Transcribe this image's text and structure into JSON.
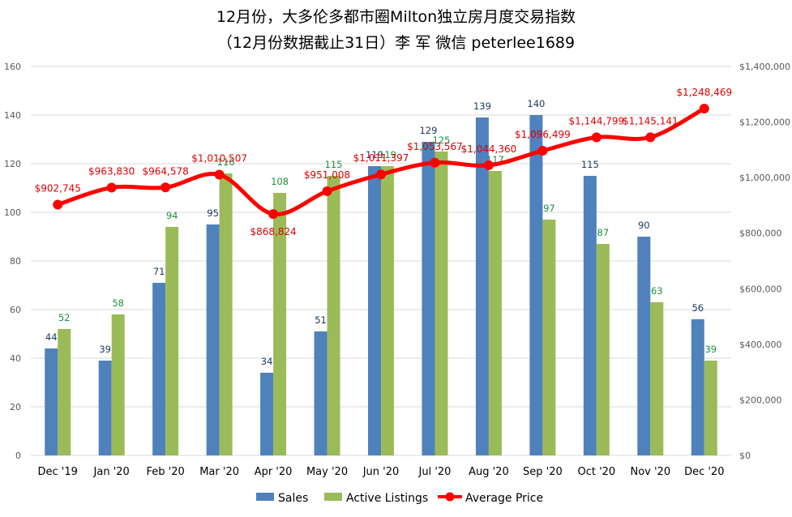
{
  "title": "12月份，大多伦多都市圈Milton独立房月度交易指数",
  "subtitle": "（12月份数据截止31日）李 军  微信  peterlee1689",
  "chart_data": {
    "type": "bar",
    "categories": [
      "Dec '19",
      "Jan '20",
      "Feb '20",
      "Mar '20",
      "Apr '20",
      "May '20",
      "Jun '20",
      "Jul '20",
      "Aug '20",
      "Sep '20",
      "Oct '20",
      "Nov '20",
      "Dec '20"
    ],
    "series": [
      {
        "name": "Sales",
        "type": "bar",
        "axis": "left",
        "color": "#4f81bd",
        "label_color": "#1f3864",
        "values": [
          44,
          39,
          71,
          95,
          34,
          51,
          119,
          129,
          139,
          140,
          115,
          90,
          56
        ]
      },
      {
        "name": "Active Listings",
        "type": "bar",
        "axis": "left",
        "color": "#9bbb59",
        "label_color": "#1e8f3c",
        "values": [
          52,
          58,
          94,
          116,
          108,
          115,
          119,
          125,
          117,
          97,
          87,
          63,
          39
        ]
      },
      {
        "name": "Average Price",
        "type": "line",
        "axis": "right",
        "color": "#ff0000",
        "label_color": "#e00000",
        "values": [
          902745,
          963830,
          964578,
          1010507,
          868824,
          951008,
          1011397,
          1053567,
          1044360,
          1096499,
          1144799,
          1145141,
          1248469
        ],
        "labels": [
          "$902,745",
          "$963,830",
          "$964,578",
          "$1,010,507",
          "$868,824",
          "$951,008",
          "$1,011,397",
          "$1,053,567",
          "$1,044,360",
          "$1,096,499",
          "$1,144,799",
          "$1,145,141",
          "$1,248,469"
        ]
      }
    ],
    "y_left": {
      "min": 0,
      "max": 160,
      "ticks": [
        "0",
        "20",
        "40",
        "60",
        "80",
        "100",
        "120",
        "140",
        "160"
      ]
    },
    "y_right": {
      "min": 0,
      "max": 1400000,
      "ticks": [
        "$0",
        "$200,000",
        "$400,000",
        "$600,000",
        "$800,000",
        "$1,000,000",
        "$1,200,000",
        "$1,400,000"
      ]
    },
    "grid": true,
    "legend_position": "bottom"
  }
}
